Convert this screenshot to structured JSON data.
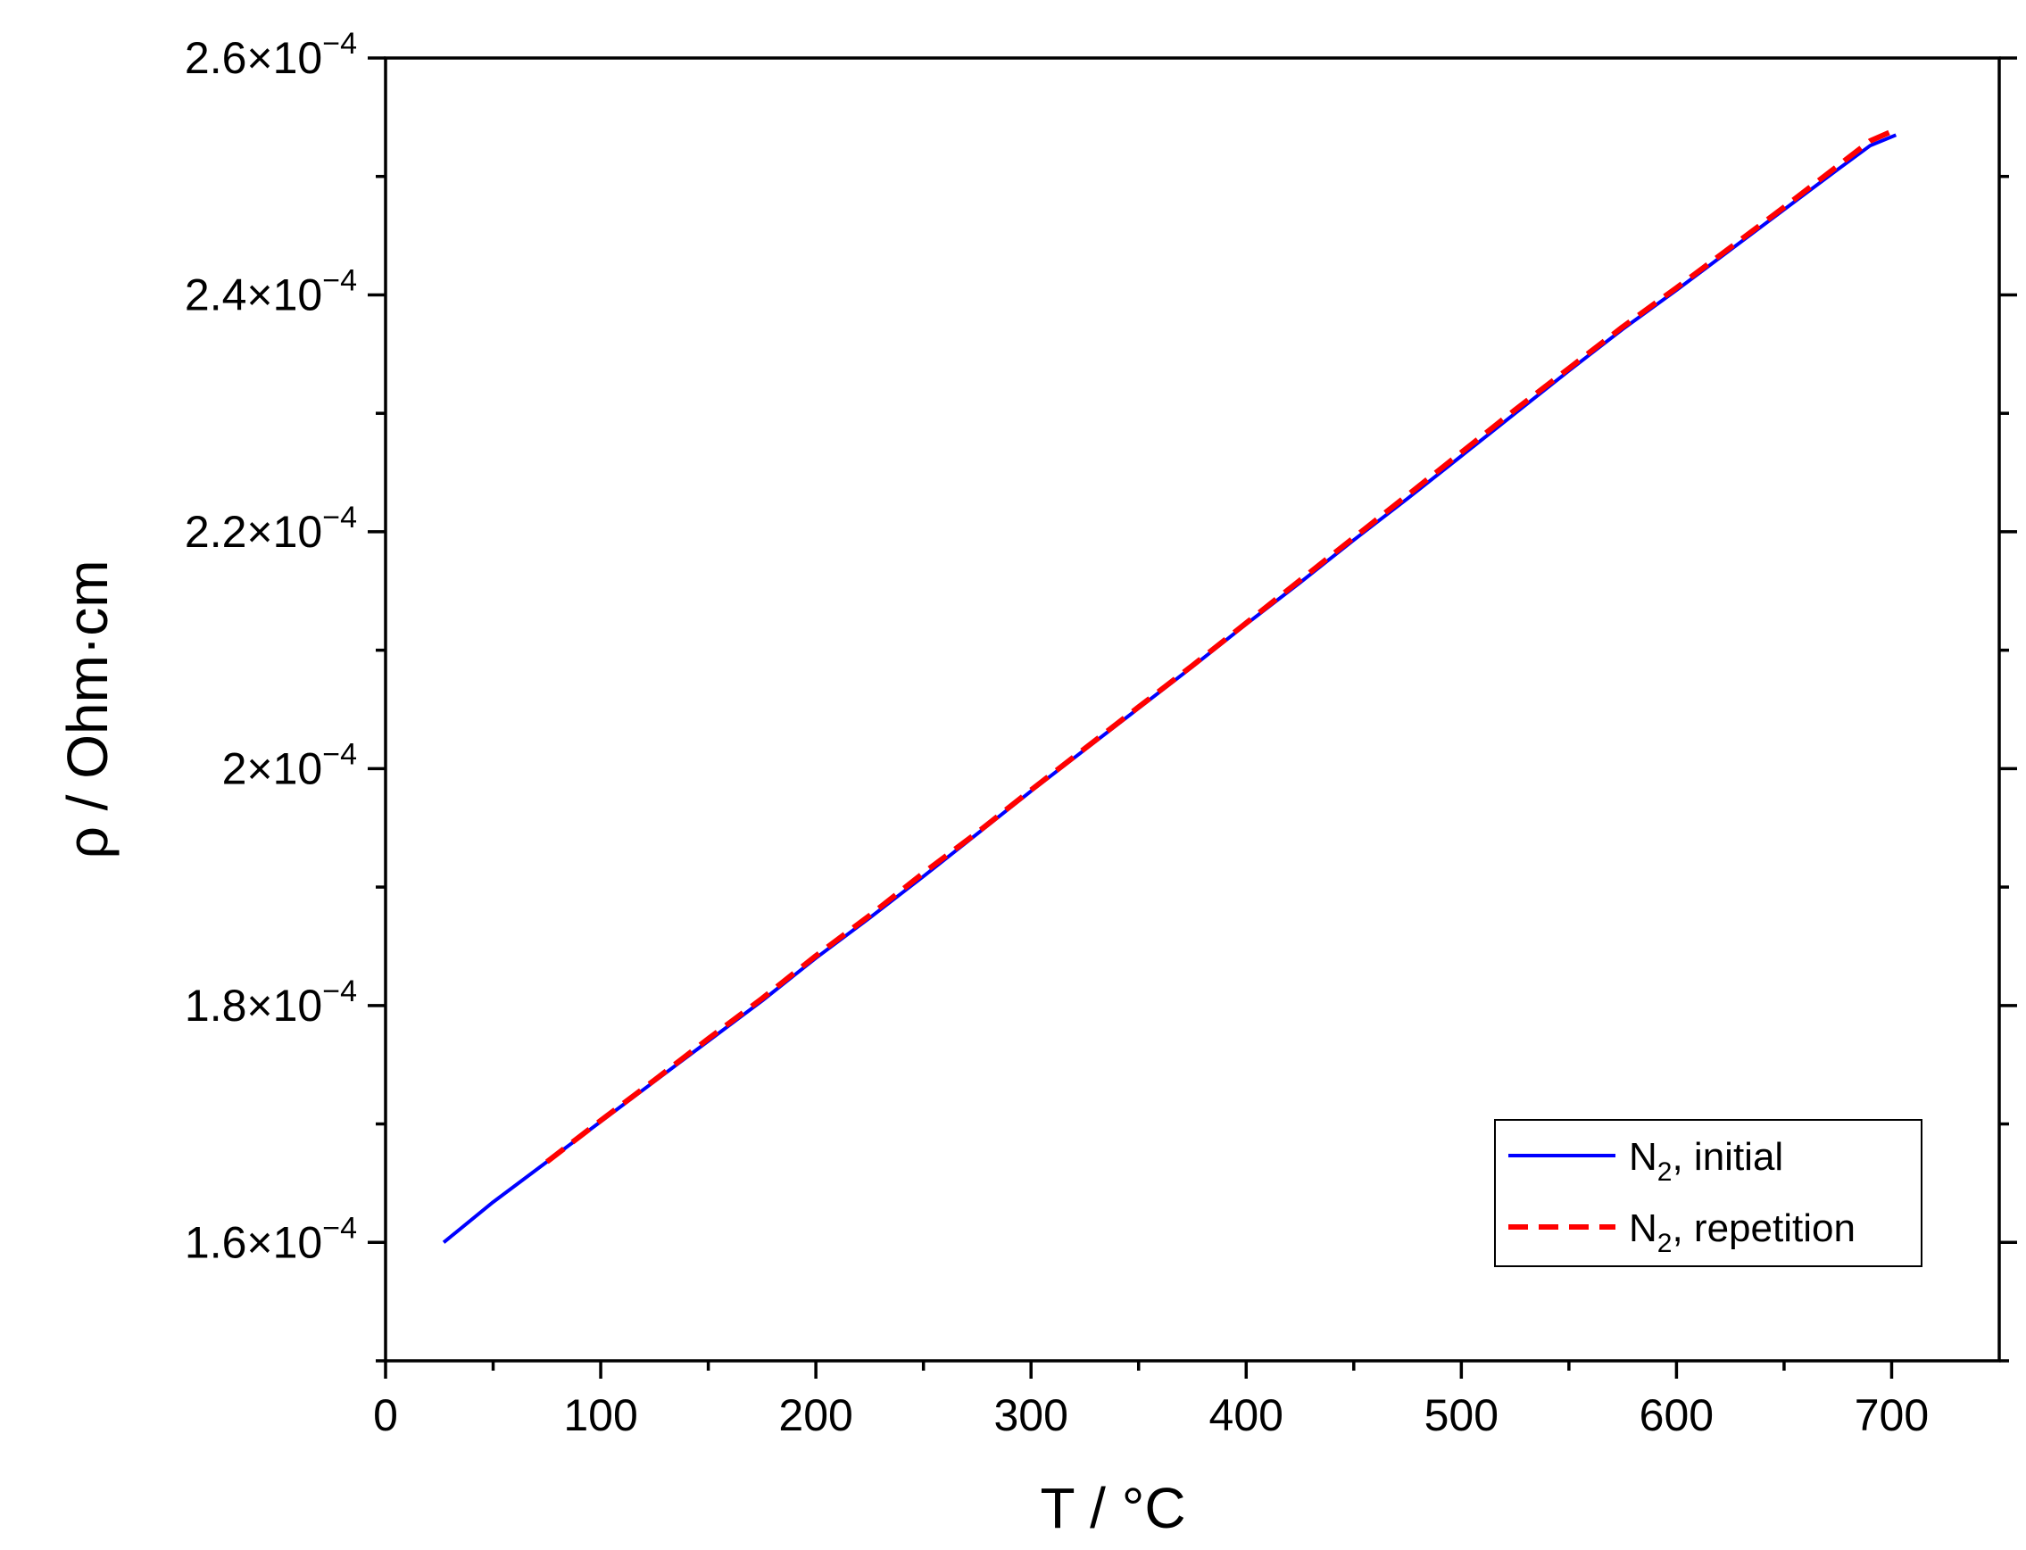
{
  "chart_data": {
    "type": "line",
    "title": "",
    "xlabel": "T / °C",
    "ylabel": "ρ / Ohm·cm",
    "xlim": [
      0,
      750
    ],
    "ylim": [
      0.00015,
      0.00026
    ],
    "x_ticks": [
      0,
      100,
      200,
      300,
      400,
      500,
      600,
      700
    ],
    "y_ticks": [
      {
        "value": 0.00016,
        "mantissa": "1.6",
        "exponent": "−4"
      },
      {
        "value": 0.00018,
        "mantissa": "1.8",
        "exponent": "−4"
      },
      {
        "value": 0.0002,
        "mantissa": "2",
        "exponent": "−4"
      },
      {
        "value": 0.00022,
        "mantissa": "2.2",
        "exponent": "−4"
      },
      {
        "value": 0.00024,
        "mantissa": "2.4",
        "exponent": "−4"
      },
      {
        "value": 0.00026,
        "mantissa": "2.6",
        "exponent": "−4"
      }
    ],
    "y_tick_prefix": "×10",
    "grid": false,
    "legend_position": "bottom-right",
    "series": [
      {
        "name": "N₂, initial",
        "name_base": "N",
        "name_sub": "2",
        "name_rest": ", initial",
        "color": "#0000ff",
        "style": "solid",
        "x": [
          27,
          50,
          75,
          100,
          125,
          150,
          175,
          200,
          225,
          250,
          275,
          300,
          325,
          350,
          375,
          400,
          425,
          450,
          475,
          500,
          525,
          550,
          575,
          600,
          625,
          650,
          675,
          690,
          702
        ],
        "y": [
          0.00016,
          0.0001634,
          0.0001668,
          0.0001702,
          0.0001736,
          0.000177,
          0.0001804,
          0.000184,
          0.0001874,
          0.0001909,
          0.0001945,
          0.0001981,
          0.0002016,
          0.0002051,
          0.0002086,
          0.0002122,
          0.0002157,
          0.0002193,
          0.0002228,
          0.0002264,
          0.00023,
          0.0002336,
          0.0002371,
          0.0002404,
          0.0002438,
          0.0002472,
          0.0002506,
          0.0002526,
          0.0002535
        ]
      },
      {
        "name": "N₂, repetition",
        "name_base": "N",
        "name_sub": "2",
        "name_rest": ", repetition",
        "color": "#ff0000",
        "style": "dashed",
        "x": [
          75,
          100,
          125,
          150,
          175,
          200,
          225,
          250,
          275,
          300,
          325,
          350,
          375,
          400,
          425,
          450,
          475,
          500,
          525,
          550,
          575,
          600,
          625,
          650,
          675,
          690,
          700
        ],
        "y": [
          0.0001668,
          0.0001703,
          0.0001737,
          0.0001772,
          0.0001806,
          0.0001842,
          0.0001876,
          0.0001912,
          0.0001946,
          0.0001982,
          0.0002017,
          0.0002052,
          0.0002087,
          0.0002123,
          0.0002159,
          0.0002195,
          0.0002231,
          0.0002267,
          0.0002303,
          0.0002338,
          0.0002373,
          0.0002406,
          0.000244,
          0.0002474,
          0.0002509,
          0.000253,
          0.0002538
        ]
      }
    ]
  }
}
